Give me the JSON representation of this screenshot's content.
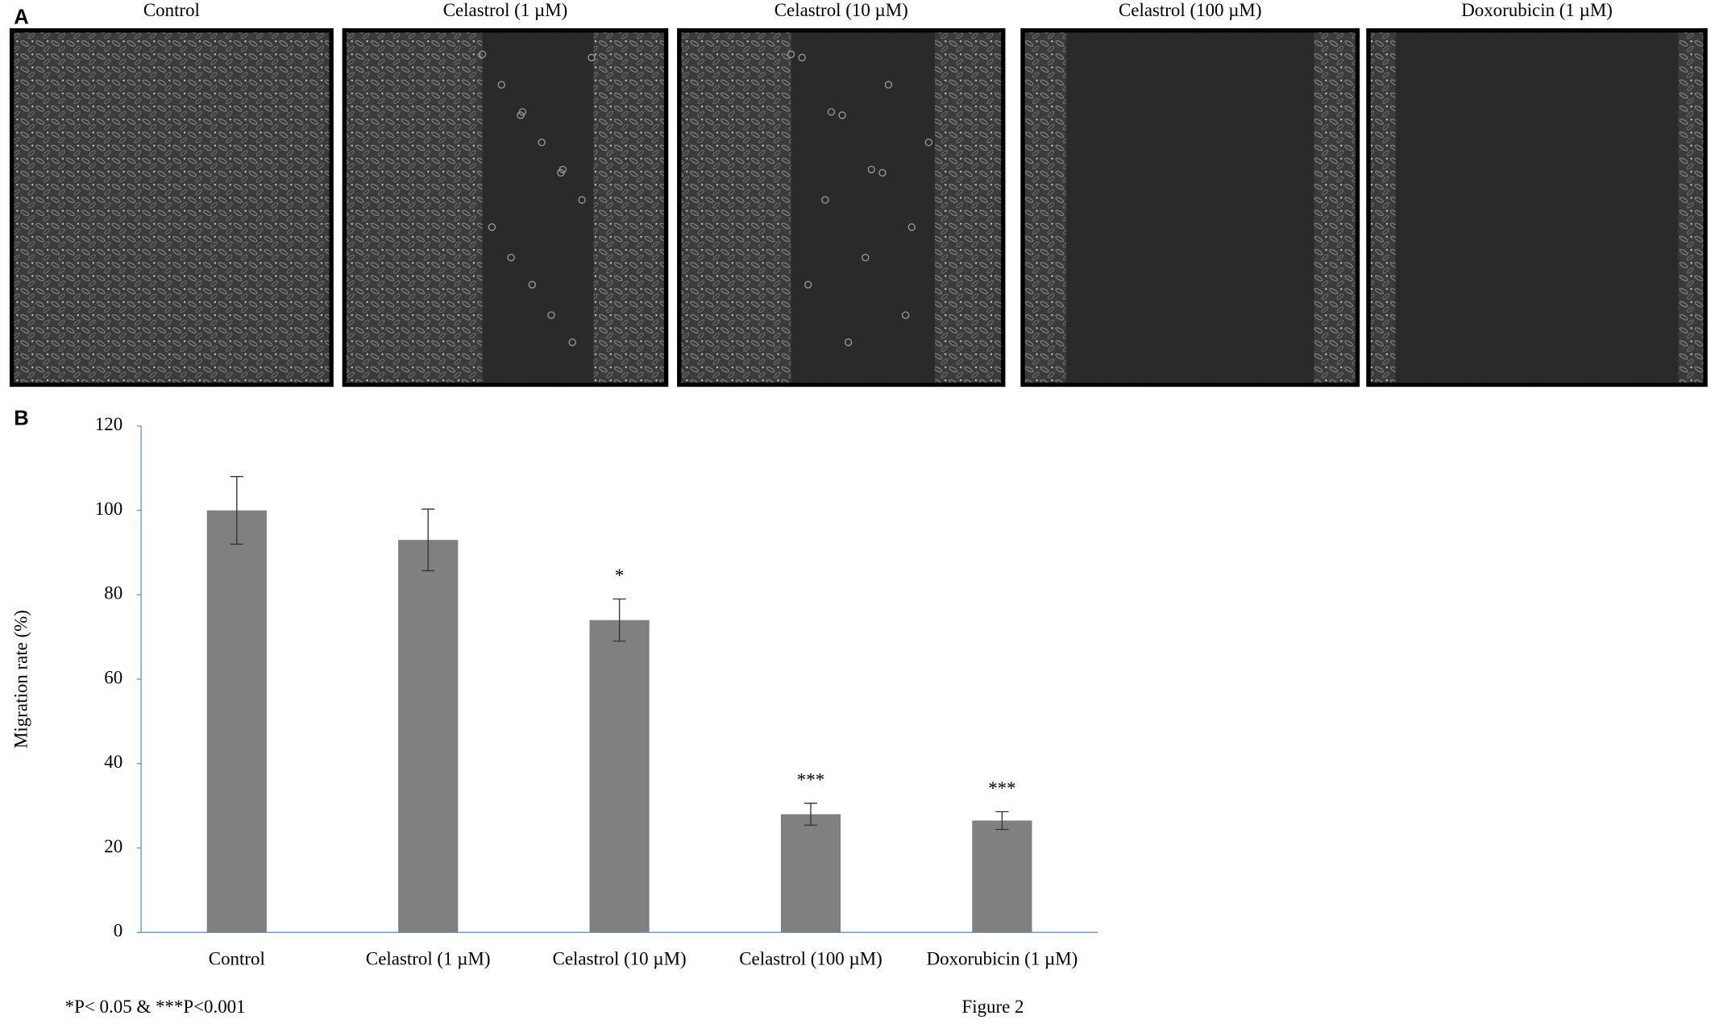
{
  "panel_a": {
    "label": "A",
    "images": [
      {
        "title": "Control"
      },
      {
        "title": "Celastrol (1 µM)"
      },
      {
        "title": "Celastrol (10 µM)"
      },
      {
        "title": "Celastrol (100 µM)"
      },
      {
        "title": "Doxorubicin (1 µM)"
      }
    ]
  },
  "panel_b_label": "B",
  "chart_data": {
    "type": "bar",
    "y_label": "Migration rate (%)",
    "categories": [
      "Control",
      "Celastrol (1 µM)",
      "Celastrol (10 µM)",
      "Celastrol (100 µM)",
      "Doxorubicin (1 µM)"
    ],
    "values": [
      100,
      93,
      74,
      28,
      26.5
    ],
    "errors": [
      8,
      7.3,
      5,
      2.6,
      2.1
    ],
    "significance": [
      null,
      null,
      "*",
      "***",
      "***"
    ],
    "color": "#808080",
    "axis_color": "#5b9bd5",
    "ylim": [
      0,
      120
    ],
    "yticks": [
      0,
      20,
      40,
      60,
      80,
      100,
      120
    ],
    "grid": false
  },
  "footnote": "*P< 0.05 & ***P<0.001",
  "figure_label": "Figure 2"
}
